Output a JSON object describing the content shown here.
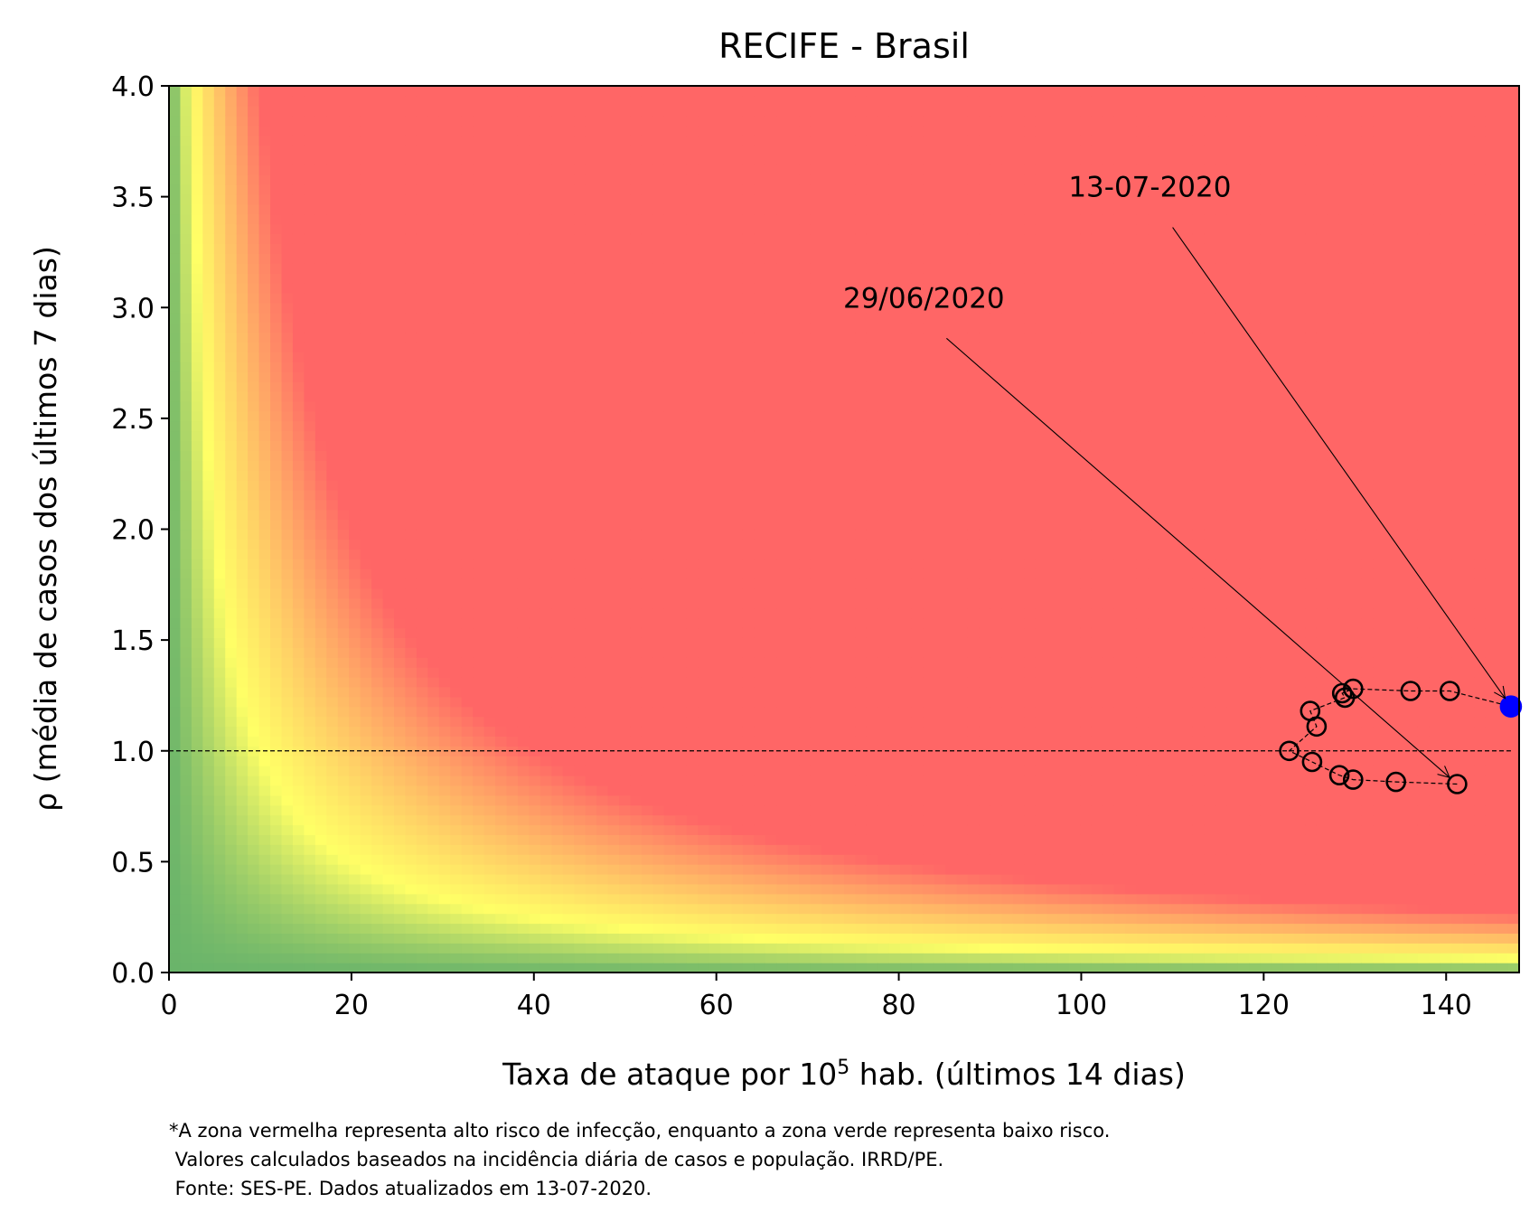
{
  "chart_data": {
    "type": "scatter",
    "title": "RECIFE - Brasil",
    "xlabel": "Taxa de ataque por 10",
    "xlabel_sup": "5",
    "xlabel_tail": " hab. (últimos 14 dias)",
    "ylabel": "ρ (média de casos dos últimos 7 dias)",
    "xlim": [
      0,
      148
    ],
    "ylim": [
      0,
      4
    ],
    "x_ticks": [
      "0",
      "20",
      "40",
      "60",
      "80",
      "100",
      "120",
      "140"
    ],
    "y_ticks": [
      "0.0",
      "0.5",
      "1.0",
      "1.5",
      "2.0",
      "2.5",
      "3.0",
      "3.5",
      "4.0"
    ],
    "background": "risk heatmap: green (low) → yellow → red (high), risk ∝ ρ · taxa",
    "reference_line": {
      "y": 1.0,
      "style": "dashed"
    },
    "series": [
      {
        "marker": "open-circle",
        "points": [
          {
            "x": 141.2,
            "y": 0.85
          },
          {
            "x": 134.5,
            "y": 0.86
          },
          {
            "x": 129.8,
            "y": 0.87
          },
          {
            "x": 128.3,
            "y": 0.89
          },
          {
            "x": 125.3,
            "y": 0.95
          },
          {
            "x": 122.8,
            "y": 1.0
          },
          {
            "x": 125.8,
            "y": 1.11
          },
          {
            "x": 125.1,
            "y": 1.18
          },
          {
            "x": 128.9,
            "y": 1.24
          },
          {
            "x": 128.6,
            "y": 1.26
          },
          {
            "x": 129.8,
            "y": 1.28
          },
          {
            "x": 136.1,
            "y": 1.27
          },
          {
            "x": 140.4,
            "y": 1.27
          },
          {
            "x": 147.1,
            "y": 1.2
          }
        ],
        "last_point_color": "#0000ff"
      }
    ],
    "annotations": [
      {
        "text": "29/06/2020",
        "text_x": 73.9,
        "text_y": 3.0,
        "target_x": 141.2,
        "target_y": 0.85
      },
      {
        "text": "13-07-2020",
        "text_x": 98.6,
        "text_y": 3.5,
        "target_x": 147.1,
        "target_y": 1.2
      }
    ],
    "colors": {
      "green": "#6ab46a",
      "yellow": "#ffff66",
      "red": "#ff6666",
      "last_point": "#0000ff"
    }
  },
  "footnote": [
    "*A zona vermelha representa alto risco de infecção, enquanto a zona verde representa baixo risco.",
    " Valores calculados baseados na incidência diária de casos e população. IRRD/PE.",
    " Fonte: SES-PE. Dados atualizados em 13-07-2020."
  ]
}
